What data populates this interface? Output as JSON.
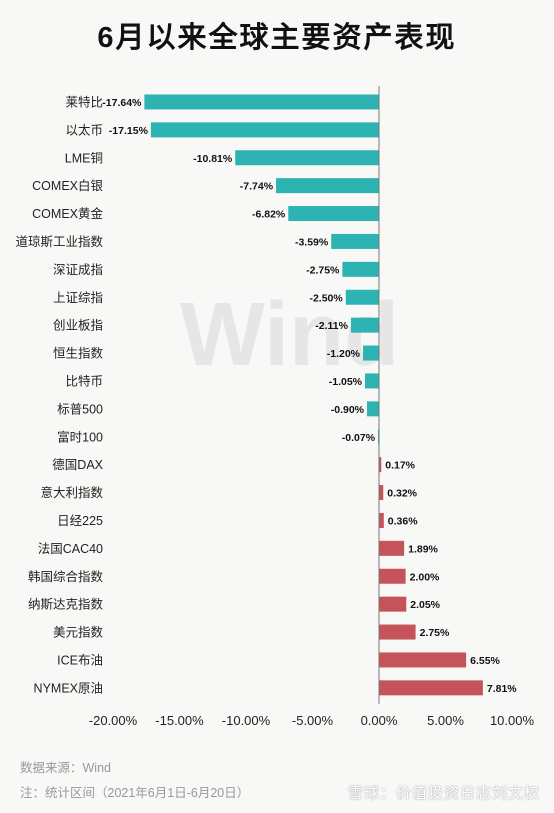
{
  "title": "6月以来全球主要资产表现",
  "watermark": "Wind",
  "source_note": "数据来源：Wind",
  "period_note": "注：统计区间（2021年6月1日-6月20日）",
  "corner_watermark": "雪球：价值投资日志刘文权",
  "chart_data": {
    "type": "bar",
    "orientation": "horizontal",
    "categories": [
      "莱特比",
      "以太币",
      "LME铜",
      "COMEX白银",
      "COMEX黄金",
      "道琼斯工业指数",
      "深证成指",
      "上证综指",
      "创业板指",
      "恒生指数",
      "比特币",
      "标普500",
      "富时100",
      "德国DAX",
      "意大利指数",
      "日经225",
      "法国CAC40",
      "韩国综合指数",
      "纳斯达克指数",
      "美元指数",
      "ICE布油",
      "NYMEX原油"
    ],
    "values": [
      -17.64,
      -17.15,
      -10.81,
      -7.74,
      -6.82,
      -3.59,
      -2.75,
      -2.5,
      -2.11,
      -1.2,
      -1.05,
      -0.9,
      -0.07,
      0.17,
      0.32,
      0.36,
      1.89,
      2.0,
      2.05,
      2.75,
      6.55,
      7.81
    ],
    "value_labels": [
      "-17.64%",
      "-17.15%",
      "-10.81%",
      "-7.74%",
      "-6.82%",
      "-3.59%",
      "-2.75%",
      "-2.50%",
      "-2.11%",
      "-1.20%",
      "-1.05%",
      "-0.90%",
      "-0.07%",
      "0.17%",
      "0.32%",
      "0.36%",
      "1.89%",
      "2.00%",
      "2.05%",
      "2.75%",
      "6.55%",
      "7.81%"
    ],
    "x_ticks": [
      "-20.00%",
      "-15.00%",
      "-10.00%",
      "-5.00%",
      "0.00%",
      "5.00%",
      "10.00%"
    ],
    "x_tick_values": [
      -20,
      -15,
      -10,
      -5,
      0,
      5,
      10
    ],
    "xlim": [
      -20,
      10
    ],
    "negative_color": "#2eb3b3",
    "positive_color": "#c4545a",
    "grid": false,
    "legend": "none"
  }
}
